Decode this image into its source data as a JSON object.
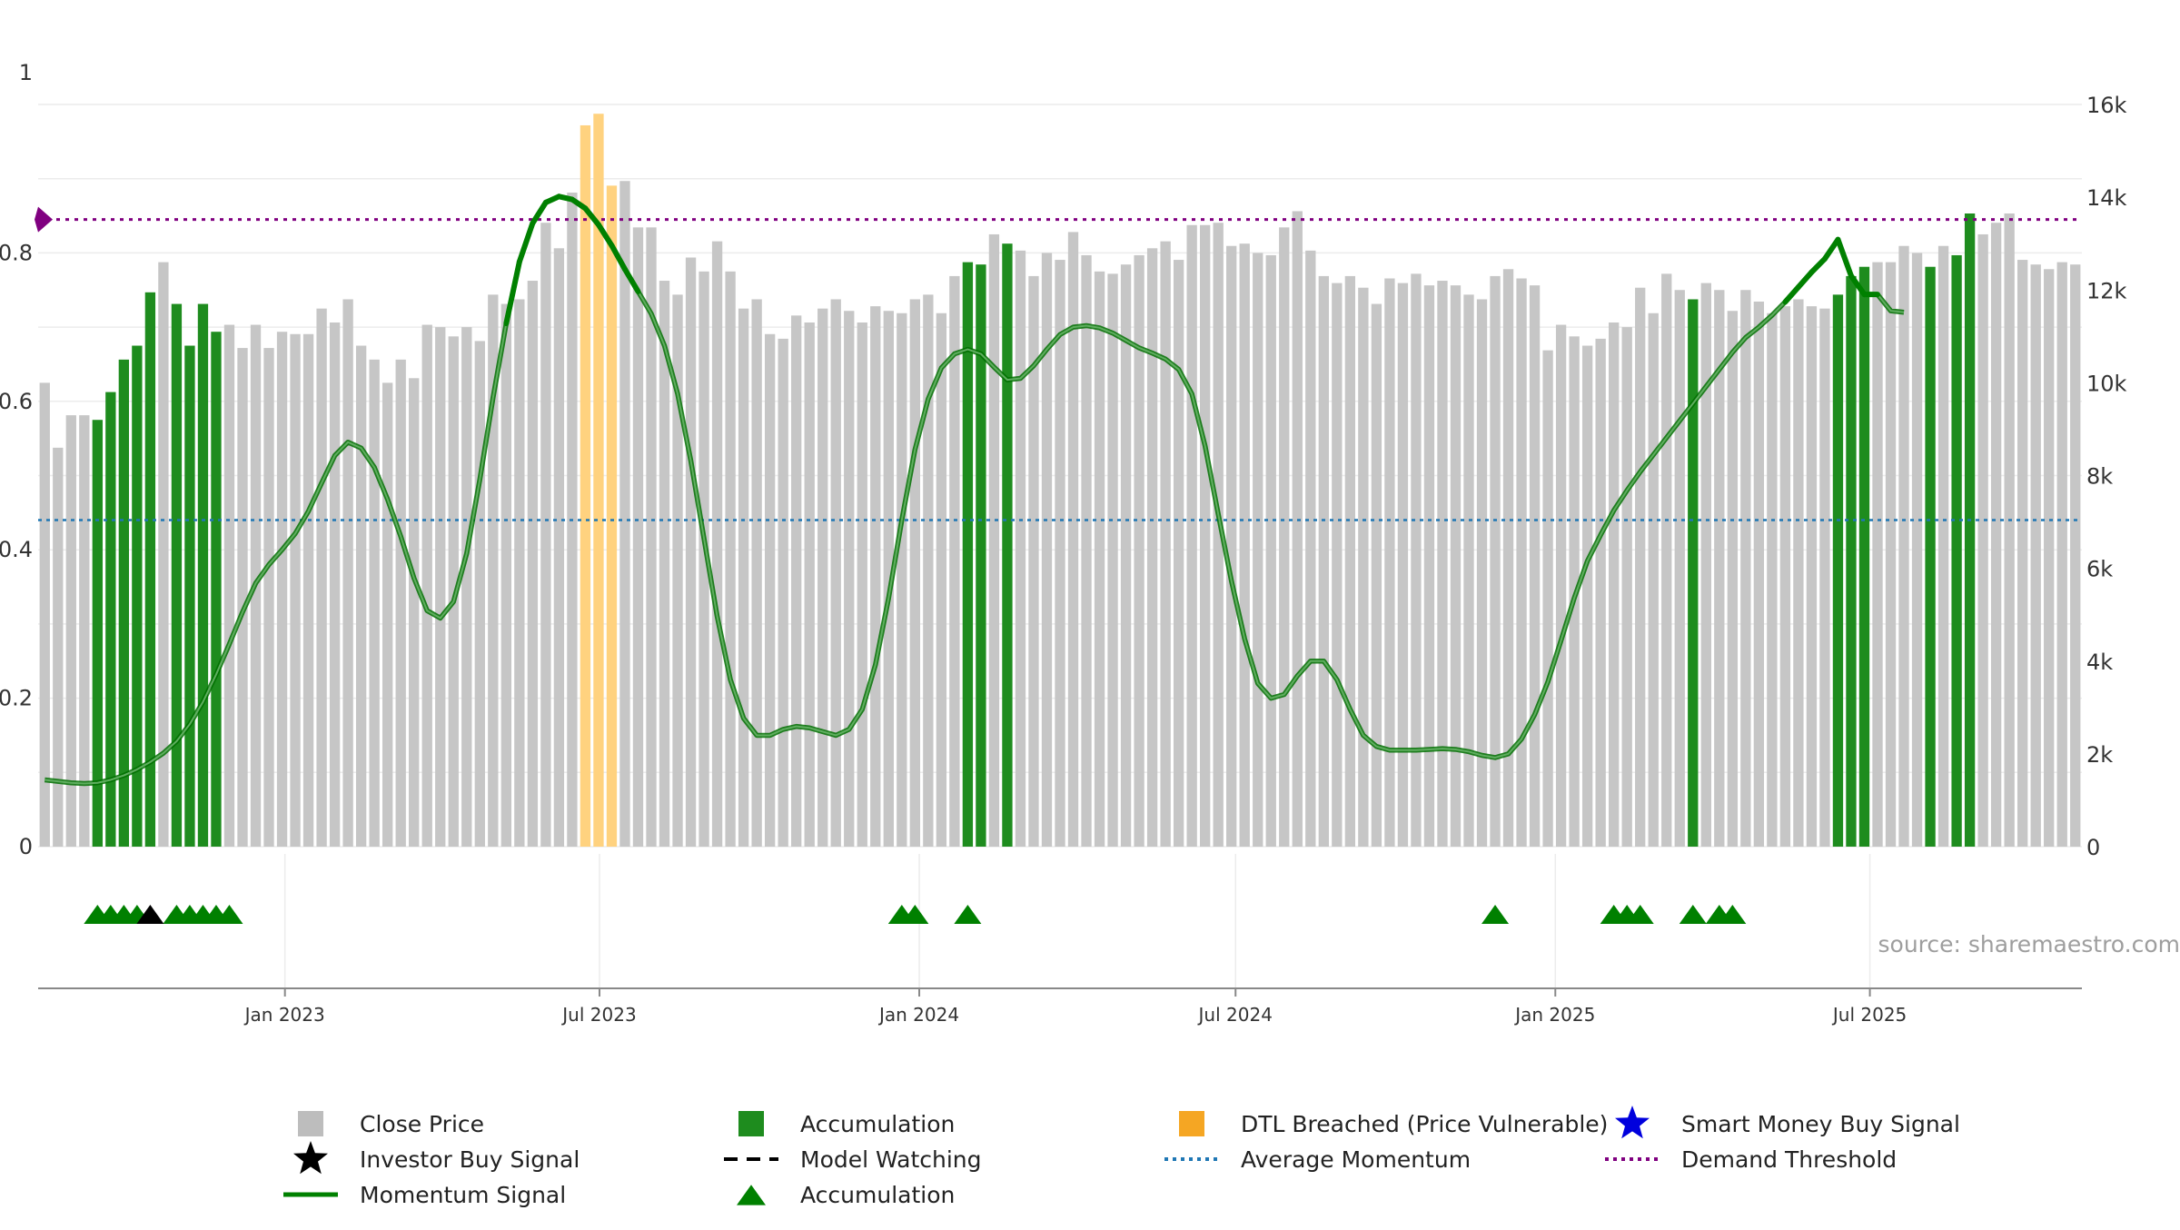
{
  "chart_data": {
    "type": "bar",
    "source_label": "source: sharemaestro.com",
    "left_axis": {
      "range": [
        0,
        1.0
      ],
      "ticks": [
        0,
        0.2,
        0.4,
        0.6,
        0.8
      ],
      "top_label": "1"
    },
    "right_axis": {
      "range": [
        0,
        16000
      ],
      "ticks": [
        0,
        2000,
        4000,
        6000,
        8000,
        10000,
        12000,
        14000,
        16000
      ],
      "tick_labels": [
        "0",
        "2k",
        "4k",
        "6k",
        "8k",
        "10k",
        "12k",
        "14k",
        "16k"
      ]
    },
    "x_axis": {
      "start_date": "2022-08-12",
      "end_date": "2025-10-31",
      "tick_labels": [
        "Jan 2023",
        "Jul 2023",
        "Jan 2024",
        "Jul 2024",
        "Jan 2025",
        "Jul 2025"
      ],
      "tick_dates": [
        "2023-01-01",
        "2023-07-01",
        "2024-01-01",
        "2024-07-01",
        "2025-01-01",
        "2025-07-01"
      ]
    },
    "demand_threshold": 0.845,
    "average_momentum": 0.44,
    "bar_categories": {
      "c": "Close Price",
      "a": "Accumulation",
      "d": "DTL Breached (Price Vulnerable)"
    },
    "close_price": [
      10000,
      8600,
      9300,
      9300,
      9200,
      9800,
      10500,
      10800,
      11950,
      12600,
      11700,
      10800,
      11700,
      11100,
      11250,
      10750,
      11250,
      10750,
      11100,
      11050,
      11050,
      11600,
      11300,
      11800,
      10800,
      10500,
      10000,
      10500,
      10100,
      11250,
      11200,
      11000,
      11200,
      10900,
      11900,
      11700,
      11800,
      12200,
      13450,
      12900,
      14100,
      15550,
      15800,
      14250,
      14350,
      13350,
      13350,
      12200,
      11900,
      12700,
      12400,
      13050,
      12400,
      11600,
      11800,
      11050,
      10950,
      11450,
      11300,
      11600,
      11800,
      11550,
      11300,
      11650,
      11550,
      11500,
      11800,
      11900,
      11500,
      12300,
      12600,
      12550,
      13200,
      13000,
      12850,
      12300,
      12800,
      12650,
      13250,
      12750,
      12400,
      12350,
      12550,
      12750,
      12900,
      13050,
      12650,
      13400,
      13400,
      13450,
      12950,
      13000,
      12800,
      12750,
      13350,
      13700,
      12850,
      12300,
      12150,
      12300,
      12050,
      11700,
      12250,
      12150,
      12350,
      12100,
      12200,
      12100,
      11900,
      11800,
      12300,
      12450,
      12250,
      12100,
      10700,
      11250,
      11000,
      10800,
      10950,
      11300,
      11200,
      12050,
      11500,
      12350,
      12000,
      11800,
      12150,
      12000,
      11550,
      12000,
      11750,
      11500,
      11650,
      11800,
      11650,
      11600,
      11900,
      12300,
      12500,
      12600,
      12600,
      12950,
      12800,
      12500,
      12950,
      12750,
      13650,
      13200,
      13450,
      13650,
      12650,
      12550,
      12450,
      12600,
      12550
    ],
    "bar_color_codes": "cccc aaaaa c aa aa c cccccccccccccccccccc cccccc ddd cccccccccccccccccc cccccccc aa c a cccccccccccccccccccccccccccccccccccccccccc ccccccccc a cccccccccc a aa c ccc a c aa cccccccccccccccccccccccccccccc cccc",
    "momentum_signal": [
      0.09,
      0.088,
      0.086,
      0.085,
      0.086,
      0.09,
      0.096,
      0.104,
      0.114,
      0.126,
      0.142,
      0.165,
      0.195,
      0.232,
      0.273,
      0.316,
      0.355,
      0.38,
      0.4,
      0.422,
      0.452,
      0.49,
      0.527,
      0.545,
      0.537,
      0.511,
      0.468,
      0.418,
      0.362,
      0.318,
      0.308,
      0.33,
      0.395,
      0.495,
      0.605,
      0.705,
      0.788,
      0.84,
      0.868,
      0.876,
      0.872,
      0.86,
      0.838,
      0.81,
      0.778,
      0.748,
      0.718,
      0.675,
      0.61,
      0.52,
      0.415,
      0.31,
      0.225,
      0.173,
      0.15,
      0.15,
      0.158,
      0.162,
      0.16,
      0.155,
      0.15,
      0.158,
      0.185,
      0.245,
      0.335,
      0.44,
      0.535,
      0.603,
      0.645,
      0.664,
      0.67,
      0.664,
      0.646,
      0.629,
      0.631,
      0.648,
      0.67,
      0.69,
      0.7,
      0.702,
      0.699,
      0.692,
      0.682,
      0.672,
      0.665,
      0.657,
      0.643,
      0.61,
      0.54,
      0.448,
      0.358,
      0.28,
      0.22,
      0.2,
      0.205,
      0.23,
      0.25,
      0.25,
      0.225,
      0.185,
      0.15,
      0.135,
      0.13,
      0.13,
      0.13,
      0.131,
      0.132,
      0.131,
      0.128,
      0.123,
      0.12,
      0.125,
      0.145,
      0.178,
      0.222,
      0.278,
      0.335,
      0.385,
      0.42,
      0.453,
      0.48,
      0.505,
      0.528,
      0.551,
      0.574,
      0.597,
      0.62,
      0.643,
      0.666,
      0.686,
      0.7,
      0.716,
      0.734,
      0.754,
      0.774,
      0.792,
      0.818,
      0.769,
      0.744,
      0.744,
      0.722,
      0.72
    ],
    "markers": {
      "accumulation": [
        4,
        5,
        6,
        7,
        10,
        11,
        12,
        13,
        14,
        65,
        66,
        70,
        110,
        119,
        120,
        121,
        125,
        127,
        128
      ],
      "investor_buy": [
        8
      ]
    },
    "legend": [
      {
        "key": "close",
        "label": "Close Price",
        "color": "#bdbdbd"
      },
      {
        "key": "accum_bar",
        "label": "Accumulation",
        "color": "#1e8c1e"
      },
      {
        "key": "dtl",
        "label": "DTL Breached (Price Vulnerable)",
        "color": "#f5a623"
      },
      {
        "key": "smart",
        "label": "Smart Money Buy Signal",
        "color": "#0000dd"
      },
      {
        "key": "investor",
        "label": "Investor Buy Signal",
        "color": "#000000"
      },
      {
        "key": "watching",
        "label": "Model Watching",
        "color": "#000000"
      },
      {
        "key": "avg",
        "label": "Average Momentum",
        "color": "#1f77b4"
      },
      {
        "key": "demand",
        "label": "Demand Threshold",
        "color": "#800080"
      },
      {
        "key": "momentum",
        "label": "Momentum Signal",
        "color": "#008000"
      },
      {
        "key": "accum_tri",
        "label": "Accumulation",
        "color": "#008000"
      }
    ]
  }
}
